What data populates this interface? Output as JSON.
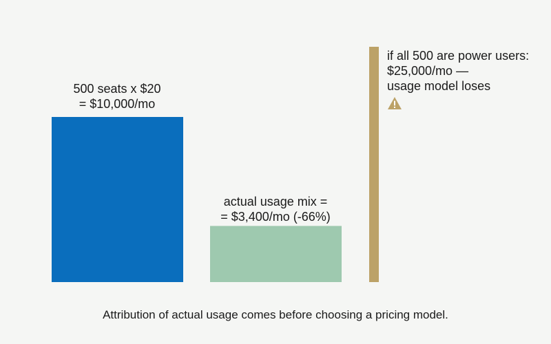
{
  "chart_data": {
    "type": "bar",
    "categories": [
      "500 seats x $20",
      "actual usage mix",
      "if all 500 are power users"
    ],
    "values": [
      10000,
      3400,
      25000
    ],
    "unit": "$/mo",
    "colors": [
      "#0a6ebd",
      "#9ec9af",
      "#bca267"
    ],
    "labels": [
      "500 seats x $20\n= $10,000/mo",
      "actual usage mix =\n= $3,400/mo (-66%)"
    ],
    "annotation": {
      "lines": [
        "if all 500 are power users:",
        "$25,000/mo —",
        "usage model loses"
      ],
      "icon": "warning-icon",
      "icon_color": "#bca267"
    },
    "grid": false,
    "legend": "none"
  },
  "caption": "Attribution of actual usage comes before choosing a pricing model."
}
